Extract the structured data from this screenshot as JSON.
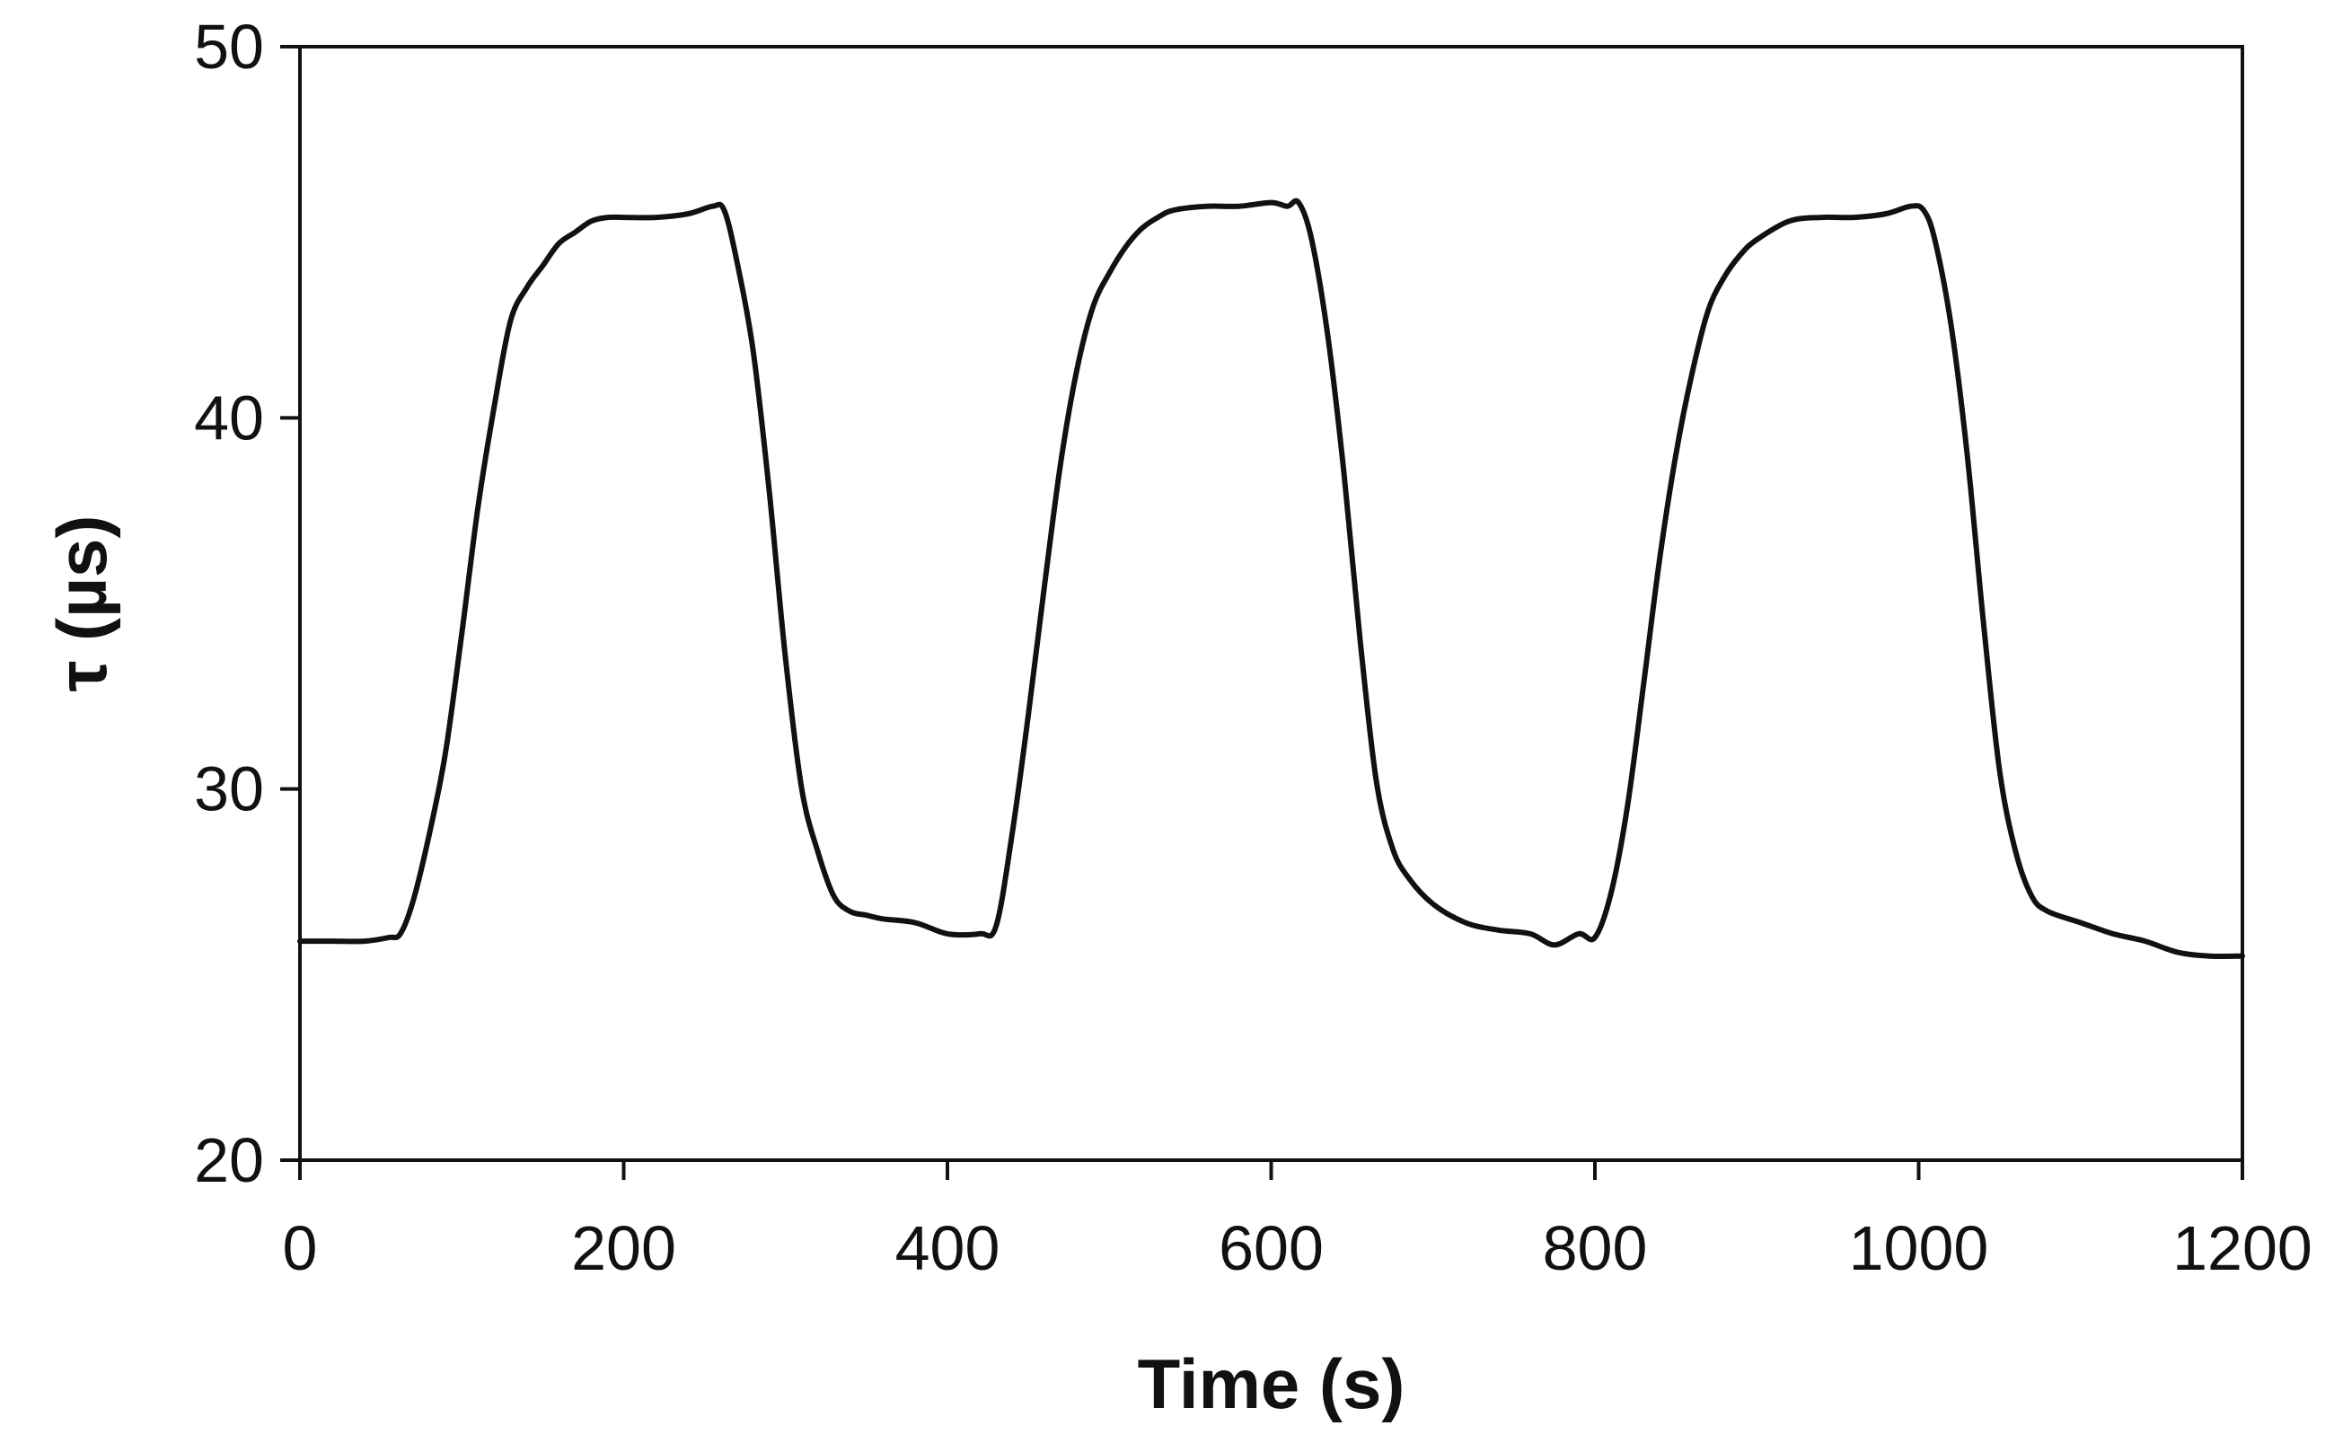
{
  "chart_data": {
    "type": "line",
    "title": "",
    "xlabel": "Time (s)",
    "ylabel": "τ (µs)",
    "xlim": [
      0,
      1200
    ],
    "ylim": [
      20,
      50
    ],
    "xticks": [
      0,
      200,
      400,
      600,
      800,
      1000,
      1200
    ],
    "yticks": [
      20,
      30,
      40,
      50
    ],
    "xtick_labels": [
      "0",
      "200",
      "400",
      "600",
      "800",
      "1000",
      "1200"
    ],
    "ytick_labels": [
      "20",
      "30",
      "40",
      "50"
    ],
    "grid": false,
    "legend": "none",
    "line_color": "#111111",
    "series": [
      {
        "name": "tau",
        "x": [
          0,
          20,
          40,
          55,
          62,
          70,
          80,
          90,
          100,
          110,
          120,
          130,
          140,
          150,
          160,
          170,
          180,
          190,
          200,
          220,
          240,
          255,
          262,
          270,
          280,
          290,
          300,
          310,
          320,
          330,
          340,
          350,
          360,
          380,
          400,
          420,
          430,
          440,
          450,
          460,
          470,
          480,
          490,
          500,
          510,
          520,
          530,
          540,
          560,
          580,
          600,
          610,
          617,
          625,
          635,
          645,
          655,
          665,
          675,
          685,
          700,
          720,
          740,
          760,
          775,
          790,
          800,
          810,
          820,
          830,
          840,
          850,
          860,
          870,
          880,
          890,
          900,
          920,
          940,
          960,
          980,
          995,
          1003,
          1010,
          1020,
          1030,
          1040,
          1050,
          1060,
          1070,
          1080,
          1100,
          1120,
          1140,
          1160,
          1180,
          1200
        ],
        "y": [
          25.9,
          25.9,
          25.9,
          26.0,
          26.1,
          27.0,
          28.8,
          31.0,
          34.2,
          37.6,
          40.3,
          42.6,
          43.5,
          44.1,
          44.7,
          45.0,
          45.3,
          45.4,
          45.4,
          45.4,
          45.5,
          45.7,
          45.6,
          44.2,
          41.8,
          38.0,
          33.5,
          30.0,
          28.3,
          27.1,
          26.7,
          26.6,
          26.5,
          26.4,
          26.1,
          26.1,
          26.3,
          28.8,
          32.0,
          35.5,
          38.8,
          41.3,
          43.0,
          43.9,
          44.6,
          45.1,
          45.4,
          45.6,
          45.7,
          45.7,
          45.8,
          45.7,
          45.8,
          44.8,
          42.2,
          38.5,
          34.0,
          30.2,
          28.4,
          27.6,
          26.9,
          26.4,
          26.2,
          26.1,
          25.8,
          26.1,
          26.0,
          27.2,
          29.5,
          32.8,
          36.2,
          39.0,
          41.2,
          42.9,
          43.8,
          44.4,
          44.8,
          45.3,
          45.4,
          45.4,
          45.5,
          45.7,
          45.6,
          44.8,
          42.5,
          39.0,
          34.5,
          30.5,
          28.3,
          27.1,
          26.7,
          26.4,
          26.1,
          25.9,
          25.6,
          25.5,
          25.5
        ]
      }
    ]
  }
}
